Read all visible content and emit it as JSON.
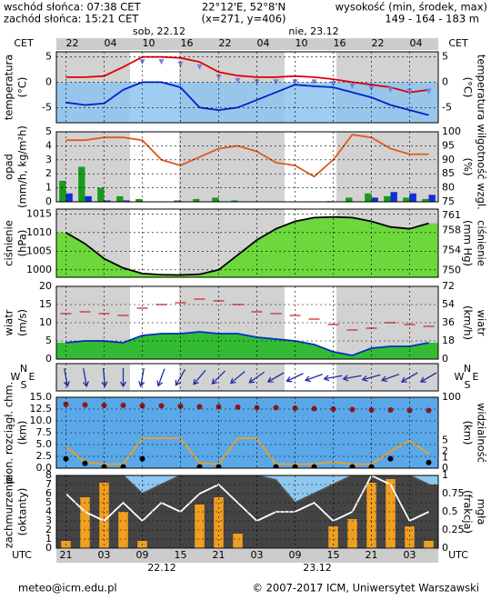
{
  "header": {
    "sunrise": "wschód słońca: 07:38 CET",
    "sunset": "zachód słońca: 15:21 CET",
    "coords": "22°12'E, 52°8'N",
    "grid_point": "(x=271, y=406)",
    "elevation_title": "wysokość (min, środek, max)",
    "elevation": "149 - 164 - 183 m"
  },
  "time_axis": {
    "top_unit": "CET",
    "bottom_unit": "UTC",
    "cet": [
      "22",
      null,
      "04",
      null,
      "10",
      null,
      "16",
      null,
      "22",
      null,
      "04",
      null,
      "10",
      null,
      "16",
      null,
      "22",
      null,
      "04",
      null
    ],
    "utc": [
      "21",
      null,
      "03",
      null,
      "09",
      null,
      "15",
      null,
      "21",
      null,
      "03",
      null,
      "09",
      null,
      "15",
      null,
      "21",
      null,
      "03",
      null
    ],
    "days_top": [
      "sob, 22.12",
      "nie, 23.12"
    ],
    "days_bottom": [
      "22.12",
      "23.12"
    ]
  },
  "chart_data": [
    {
      "type": "line",
      "ylabel": [
        "temperatura",
        "(°C)"
      ],
      "y2label": [
        "temperatura",
        "(°C)"
      ],
      "ylim": [
        -8,
        6
      ],
      "yticks": [
        -5,
        0,
        5
      ],
      "y2lim": [
        -8,
        6
      ],
      "y2ticks": [
        -5,
        0,
        5
      ],
      "grid": true,
      "series": [
        {
          "type": "line",
          "color": "#e00000",
          "values": [
            1,
            1,
            1.2,
            3,
            5,
            5,
            4.8,
            4,
            2,
            1.3,
            1,
            1,
            1.2,
            1,
            0.6,
            0,
            -0.5,
            -1,
            -2,
            -1.5
          ]
        },
        {
          "type": "line",
          "color": "#0020d0",
          "values": [
            -4,
            -4.5,
            -4.2,
            -1.5,
            0,
            0,
            -1,
            -5,
            -5.5,
            -5,
            -3.5,
            -2,
            -0.5,
            -0.8,
            -1,
            -2,
            -3,
            -4.5,
            -5.5,
            -6.5
          ]
        },
        {
          "type": "triangle",
          "color": "#7c7ce0",
          "values": [
            null,
            null,
            null,
            null,
            4,
            4,
            3.5,
            3,
            1,
            0.3,
            0,
            0,
            0,
            0,
            -0.3,
            -0.8,
            -1.2,
            -1.5,
            -1.8,
            -1.8
          ]
        }
      ]
    },
    {
      "type": "bar",
      "ylabel": [
        "opad",
        "(mm/h, kg/m²h)"
      ],
      "y2label": [
        "wilgotność wzgl.",
        "(%)"
      ],
      "ylim": [
        0,
        5
      ],
      "yticks": [
        0,
        1,
        2,
        3,
        4,
        5
      ],
      "y2lim": [
        75,
        100
      ],
      "y2ticks": [
        75,
        80,
        85,
        90,
        95,
        100
      ],
      "grid": true,
      "series": [
        {
          "type": "bar",
          "color": "#1a9a1a",
          "values": [
            1.5,
            2.5,
            1,
            0.4,
            0.2,
            0,
            0.1,
            0.2,
            0.3,
            0.1,
            0,
            0,
            0,
            0,
            0.05,
            0.3,
            0.6,
            0.4,
            0.3,
            0.2
          ]
        },
        {
          "type": "bar",
          "color": "#1030d0",
          "values": [
            0.6,
            0.4,
            0.1,
            0.1,
            0,
            0,
            0,
            0,
            0,
            0,
            0,
            0,
            0,
            0,
            0,
            0,
            0.3,
            0.7,
            0.6,
            0.5
          ]
        },
        {
          "type": "line",
          "axis": "y2",
          "color": "#e05a1a",
          "values": [
            97,
            97,
            98,
            98,
            97,
            90,
            88,
            91,
            94,
            95,
            93,
            89,
            88,
            84,
            90,
            99,
            98,
            94,
            92,
            92
          ]
        }
      ]
    },
    {
      "type": "area",
      "ylabel": [
        "ciśnienie",
        "(hPa)"
      ],
      "y2label": [
        "ciśnienie",
        "(mm Hg)"
      ],
      "ylim": [
        998,
        1016.3
      ],
      "yticks": [
        1000,
        1005,
        1010,
        1015
      ],
      "y2lim": [
        748.6,
        762.3
      ],
      "y2ticks": [
        750,
        754,
        758,
        761
      ],
      "grid": true,
      "series": [
        {
          "type": "area",
          "color": "#000000",
          "fill": "#6cd83c",
          "values": [
            1010,
            1007,
            1003,
            1000.5,
            999,
            998.7,
            998.6,
            998.8,
            1000,
            1004,
            1008,
            1011,
            1013,
            1014,
            1014.2,
            1014,
            1013,
            1011.5,
            1011,
            1012.5
          ]
        }
      ]
    },
    {
      "type": "area",
      "ylabel": [
        "wiatr",
        "(m/s)"
      ],
      "y2label": [
        "wiatr",
        "(km/h)"
      ],
      "ylim": [
        0,
        20
      ],
      "yticks": [
        0,
        5,
        10,
        15,
        20
      ],
      "y2lim": [
        0,
        72
      ],
      "y2ticks": [
        0,
        18,
        36,
        54,
        72
      ],
      "grid": true,
      "series": [
        {
          "type": "area",
          "color": "#0030c0",
          "fill": "#33bb33",
          "values": [
            4.5,
            5,
            5,
            4.5,
            6.5,
            7,
            7,
            7.5,
            7,
            7,
            6,
            5.5,
            5,
            4,
            2,
            1,
            3,
            3.5,
            3.5,
            4.5
          ]
        },
        {
          "type": "dash",
          "color": "#cc2020",
          "values": [
            12.5,
            13,
            12.5,
            12,
            14,
            15,
            15.5,
            16.5,
            16,
            15,
            13,
            12.5,
            12,
            11,
            9.5,
            8,
            8.5,
            10,
            9.5,
            9
          ]
        }
      ]
    },
    {
      "type": "arrows",
      "compass": {
        "n": "N",
        "e": "E",
        "s": "S",
        "w": "W"
      },
      "color": "#2030a0",
      "values": [
        350,
        350,
        355,
        0,
        10,
        20,
        30,
        40,
        45,
        50,
        55,
        60,
        65,
        70,
        80,
        80,
        75,
        70,
        60,
        60
      ]
    },
    {
      "type": "line",
      "ylabel": [
        "pion. rozciągł. chm.",
        "(km)"
      ],
      "y2label": [
        "widzialność",
        "(km)"
      ],
      "ylim": [
        0,
        15
      ],
      "yticks": [
        {
          "value": 0,
          "label": "0.0"
        },
        {
          "value": 2.5,
          "label": "2.5"
        },
        {
          "value": 5,
          "label": "5.0"
        },
        {
          "value": 7.5,
          "label": "7.5"
        },
        {
          "value": 10,
          "label": "10.0"
        },
        {
          "value": 12.5,
          "label": "12.5"
        },
        {
          "value": 15,
          "label": "15.0"
        }
      ],
      "y2lim": [
        0,
        100
      ],
      "y2ticks": [
        0,
        1,
        2,
        5,
        100
      ],
      "y2scale": "log1p",
      "grid": true,
      "series": [
        {
          "type": "dot",
          "color": "#8b1a1a",
          "values": [
            13.5,
            13.4,
            13.3,
            13.3,
            13.2,
            13.2,
            13.1,
            13,
            13,
            12.9,
            12.8,
            12.8,
            12.7,
            12.6,
            12.5,
            12.4,
            12.3,
            12.3,
            12.2,
            12.2
          ]
        },
        {
          "type": "line",
          "axis": "y2",
          "color": "#f0a020",
          "values": [
            3,
            0.5,
            0.3,
            0.3,
            6,
            6,
            6,
            0.4,
            0.3,
            6,
            6,
            0.3,
            0.3,
            0.3,
            0.5,
            0.3,
            0.3,
            2,
            5,
            1.5
          ]
        },
        {
          "type": "dot",
          "color": "#000000",
          "values": [
            2,
            1,
            0.3,
            0.3,
            2,
            null,
            null,
            0.3,
            0.3,
            null,
            null,
            0.3,
            0.3,
            0.3,
            null,
            0.3,
            0.3,
            2,
            null,
            1.2
          ]
        }
      ]
    },
    {
      "type": "area",
      "ylabel": [
        "zachmurzenie",
        "(oktanty)"
      ],
      "y2label": [
        "mgła",
        "(frakcja)"
      ],
      "ylim": [
        0,
        8
      ],
      "yticks": [
        0,
        1,
        2,
        3,
        4,
        5,
        6,
        7,
        8
      ],
      "y2lim": [
        0,
        1
      ],
      "y2ticks": [
        0,
        0.25,
        0.5,
        0.75,
        1
      ],
      "grid": true,
      "series": [
        {
          "type": "area",
          "color": "#505050",
          "fill": "#444444",
          "values": [
            8,
            8,
            8,
            8,
            6,
            7,
            8,
            8,
            8,
            8,
            8,
            7.5,
            5,
            6,
            7,
            8,
            8,
            8,
            8,
            7
          ]
        },
        {
          "type": "bar",
          "axis": "y2",
          "color": "#f0a020",
          "values": [
            0.1,
            0.7,
            0.9,
            0.5,
            0.1,
            0,
            0,
            0.6,
            0.7,
            0.2,
            0,
            0,
            0,
            0,
            0.3,
            0.4,
            0.9,
            0.95,
            0.3,
            0.1
          ]
        },
        {
          "type": "line",
          "color": "#ffffff",
          "values": [
            6,
            4,
            3,
            5,
            3,
            5,
            4,
            6,
            7,
            5,
            3,
            4,
            4,
            5,
            3,
            4,
            8,
            7,
            3,
            4
          ]
        }
      ]
    }
  ],
  "footer": {
    "email": "meteo@icm.edu.pl",
    "copyright": "© 2007-2017 ICM, Uniwersytet Warszawski"
  }
}
